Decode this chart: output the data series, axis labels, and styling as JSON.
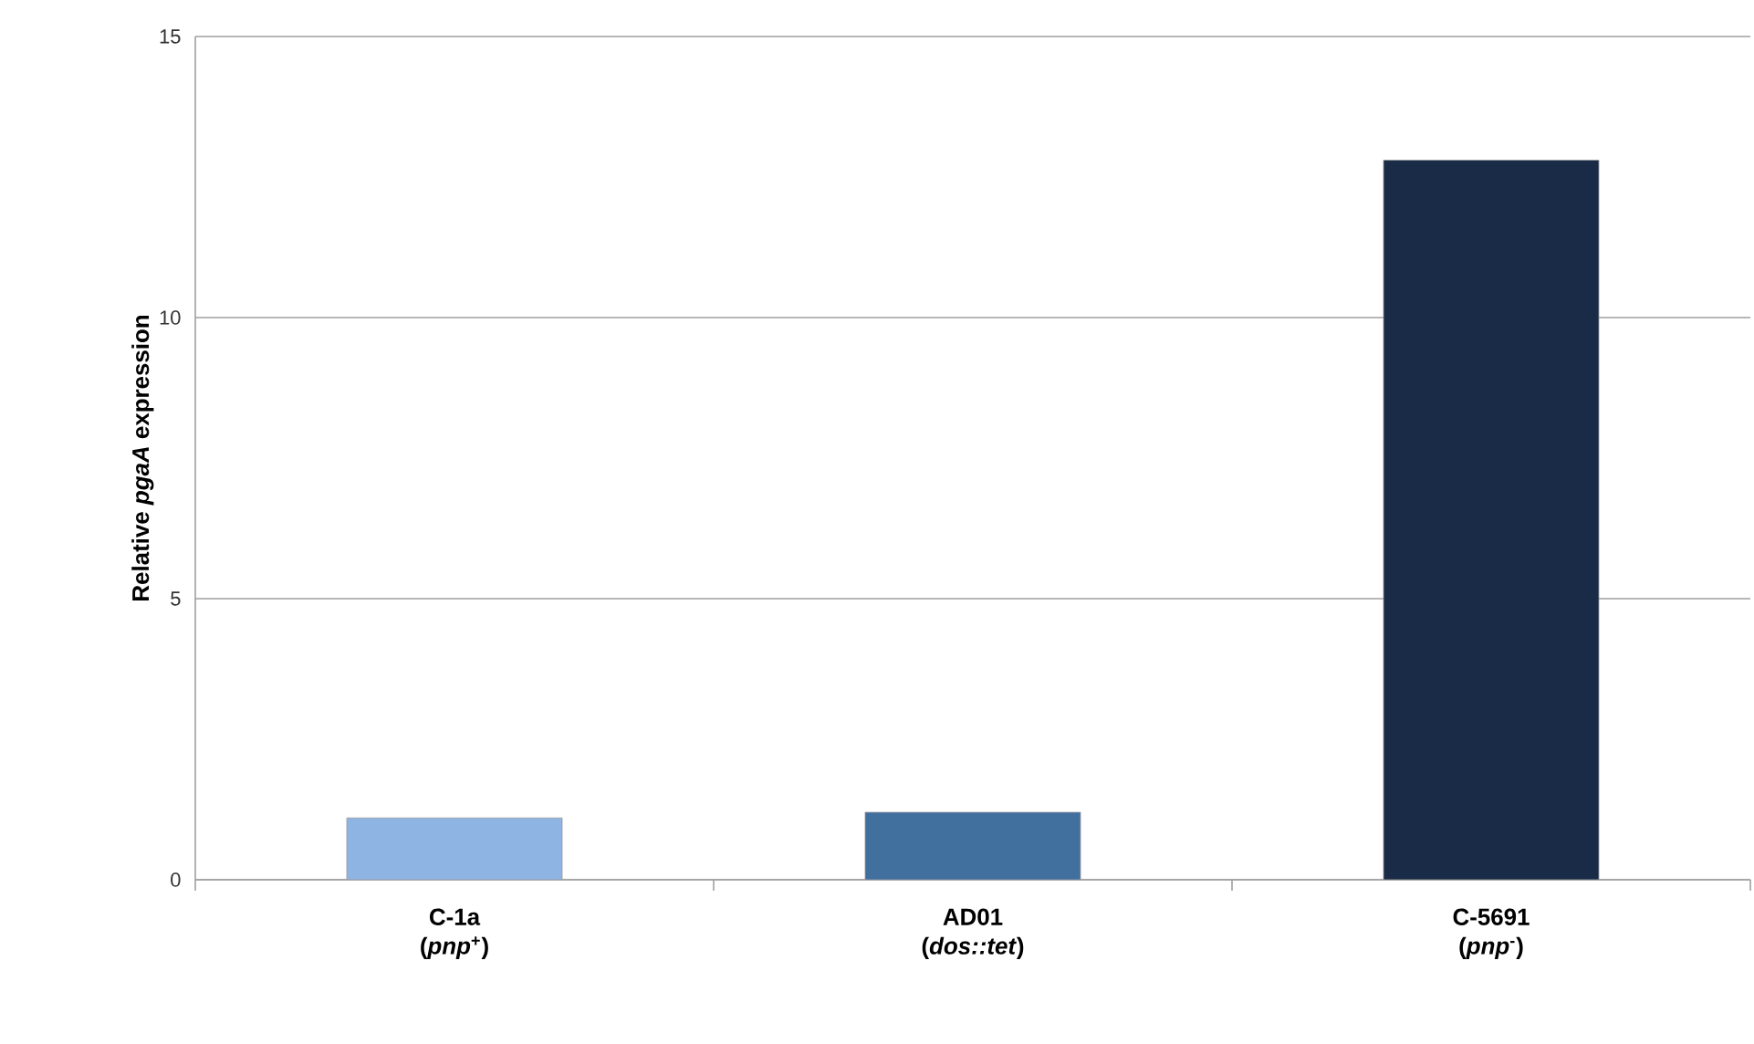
{
  "chart_data": {
    "type": "bar",
    "ylabel": "Relative *pgaA* expression",
    "categories": [
      "C-1a (*pnp*$^{+}$)",
      "AD01 (*dos::tet*)",
      "C-5691 (*pnp*$^{-}$)"
    ],
    "values": [
      1.1,
      1.2,
      12.8
    ],
    "colors": [
      "#8eb4e3",
      "#41709f",
      "#1a2b47"
    ],
    "ylim": [
      0,
      15
    ],
    "yticks": [
      0,
      5,
      10,
      15
    ],
    "grid": "y"
  }
}
